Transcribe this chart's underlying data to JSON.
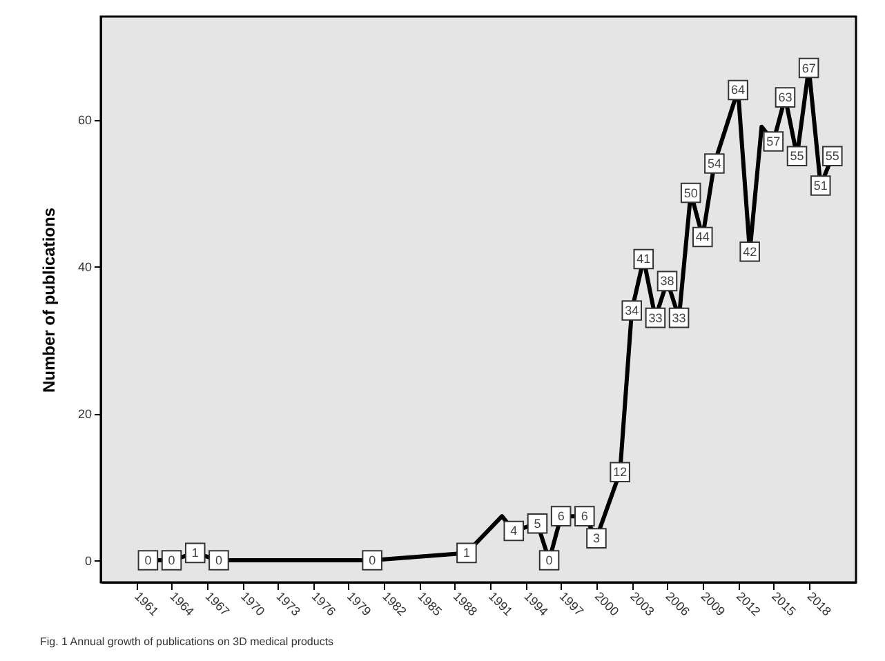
{
  "chart_data": {
    "type": "line",
    "title": "Fig. 1 Annual growth of publications on 3D medical products",
    "ylabel": "Number of publications",
    "x": [
      1962,
      1964,
      1966,
      1968,
      1981,
      1989,
      1992,
      1993,
      1995,
      1996,
      1997,
      1999,
      2000,
      2002,
      2003,
      2004,
      2005,
      2006,
      2007,
      2008,
      2009,
      2010,
      2012,
      2013,
      2014,
      2015,
      2016,
      2017,
      2018,
      2019,
      2020
    ],
    "series": [
      {
        "color": "#000000",
        "values": [
          0,
          0,
          1,
          0,
          0,
          1,
          6,
          4,
          5,
          0,
          6,
          6,
          3,
          12,
          34,
          41,
          33,
          38,
          33,
          50,
          44,
          54,
          64,
          42,
          59,
          57,
          63,
          55,
          67,
          51,
          55
        ],
        "value_labels": [
          "0",
          "0",
          "1",
          "0",
          "0",
          "1",
          null,
          "4",
          "5",
          "0",
          "6",
          "6",
          "3",
          "12",
          "34",
          "41",
          "33",
          "38",
          "33",
          "50",
          "44",
          "54",
          "64",
          "42",
          null,
          "57",
          "63",
          "55",
          "67",
          "51",
          "55"
        ]
      }
    ],
    "xlim": [
      1958,
      2022
    ],
    "xticks": [
      1961,
      1964,
      1967,
      1970,
      1973,
      1976,
      1979,
      1982,
      1985,
      1988,
      1991,
      1994,
      1997,
      2000,
      2003,
      2006,
      2009,
      2012,
      2015,
      2018
    ],
    "ylim": [
      -3,
      74
    ],
    "yticks": [
      0,
      20,
      40,
      60
    ],
    "grid": false,
    "marker": "square",
    "line_style": "solid"
  }
}
